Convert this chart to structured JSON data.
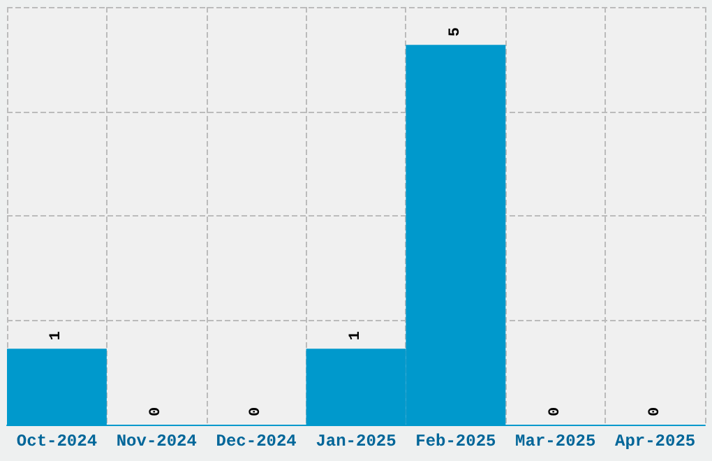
{
  "chart_data": {
    "type": "bar",
    "categories": [
      "Oct-2024",
      "Nov-2024",
      "Dec-2024",
      "Jan-2025",
      "Feb-2025",
      "Mar-2025",
      "Apr-2025"
    ],
    "values": [
      1,
      0,
      0,
      1,
      5,
      0,
      0
    ],
    "color": "#0099cc",
    "ylim": [
      0,
      5.5
    ],
    "yticks": [
      {
        "value": 0,
        "label": null
      },
      {
        "value": 1.375,
        "label": null
      },
      {
        "value": 2.75,
        "label": null
      },
      {
        "value": 4.125,
        "label": null
      },
      {
        "value": 5.5,
        "label": null
      }
    ],
    "tick_labels": "x",
    "grid": true,
    "data_labels": true
  }
}
